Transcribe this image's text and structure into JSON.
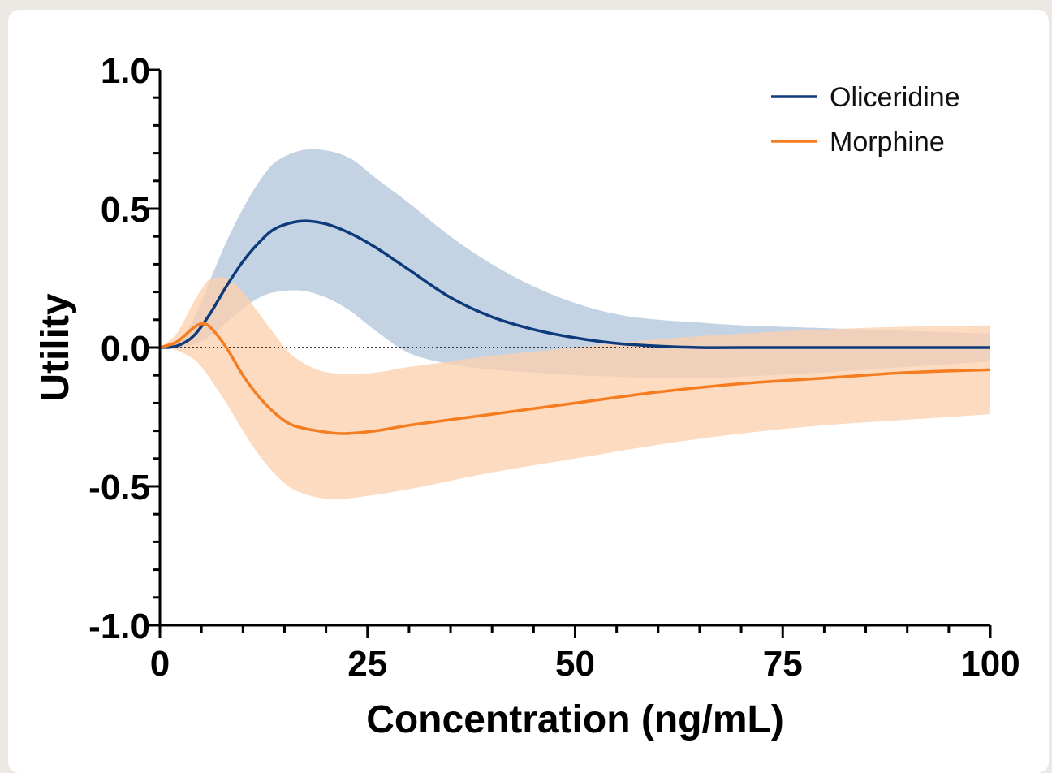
{
  "chart_data": {
    "type": "line",
    "xlabel": "Concentration (ng/mL)",
    "ylabel": "Utility",
    "xlim": [
      0,
      100
    ],
    "ylim": [
      -1.0,
      1.0
    ],
    "x_ticks": [
      "0",
      "25",
      "50",
      "75",
      "100"
    ],
    "y_ticks": [
      "-1.0",
      "-0.5",
      "0.0",
      "0.5",
      "1.0"
    ],
    "x_tick_values": [
      0,
      25,
      50,
      75,
      100
    ],
    "y_tick_values": [
      -1.0,
      -0.5,
      0.0,
      0.5,
      1.0
    ],
    "x_minor_step": 5,
    "y_minor_step": 0.1,
    "zero_reference_line": true,
    "grid": false,
    "legend_position": "top-right",
    "series": [
      {
        "name": "Oliceridine",
        "color": "#0d3a7a",
        "band_color": "#b4c6dc",
        "x": [
          0,
          2,
          4,
          6,
          8,
          10,
          12,
          14,
          17,
          20,
          23,
          26,
          30,
          35,
          40,
          45,
          50,
          55,
          60,
          65,
          70,
          80,
          90,
          100
        ],
        "y": [
          0.0,
          0.005,
          0.04,
          0.12,
          0.22,
          0.31,
          0.38,
          0.43,
          0.455,
          0.445,
          0.41,
          0.36,
          0.28,
          0.18,
          0.11,
          0.065,
          0.035,
          0.015,
          0.005,
          0.0,
          0.0,
          0.0,
          0.0,
          0.0
        ],
        "lower": [
          0.0,
          0.0,
          0.01,
          0.04,
          0.09,
          0.14,
          0.18,
          0.2,
          0.205,
          0.18,
          0.13,
          0.06,
          -0.02,
          -0.06,
          -0.08,
          -0.09,
          -0.1,
          -0.105,
          -0.11,
          -0.11,
          -0.105,
          -0.09,
          -0.07,
          -0.05
        ],
        "upper": [
          0.0,
          0.02,
          0.1,
          0.24,
          0.38,
          0.5,
          0.6,
          0.67,
          0.71,
          0.71,
          0.68,
          0.61,
          0.52,
          0.4,
          0.3,
          0.22,
          0.16,
          0.12,
          0.1,
          0.09,
          0.08,
          0.07,
          0.06,
          0.05
        ]
      },
      {
        "name": "Morphine",
        "color": "#f57c1f",
        "band_color": "#fbd1b0",
        "x": [
          0,
          2,
          4,
          5,
          6,
          8,
          10,
          12,
          14,
          16,
          19,
          22,
          26,
          30,
          35,
          40,
          50,
          60,
          70,
          80,
          90,
          100
        ],
        "y": [
          0.0,
          0.02,
          0.07,
          0.085,
          0.075,
          0.0,
          -0.1,
          -0.18,
          -0.24,
          -0.28,
          -0.3,
          -0.31,
          -0.3,
          -0.28,
          -0.26,
          -0.24,
          -0.2,
          -0.16,
          -0.13,
          -0.11,
          -0.09,
          -0.08
        ],
        "lower": [
          0.0,
          -0.01,
          -0.04,
          -0.07,
          -0.11,
          -0.2,
          -0.3,
          -0.39,
          -0.46,
          -0.51,
          -0.54,
          -0.545,
          -0.53,
          -0.51,
          -0.48,
          -0.45,
          -0.4,
          -0.35,
          -0.31,
          -0.28,
          -0.26,
          -0.24
        ],
        "upper": [
          0.0,
          0.05,
          0.16,
          0.21,
          0.245,
          0.25,
          0.2,
          0.12,
          0.04,
          -0.03,
          -0.08,
          -0.095,
          -0.09,
          -0.07,
          -0.05,
          -0.03,
          0.0,
          0.03,
          0.05,
          0.065,
          0.075,
          0.08
        ]
      }
    ]
  }
}
